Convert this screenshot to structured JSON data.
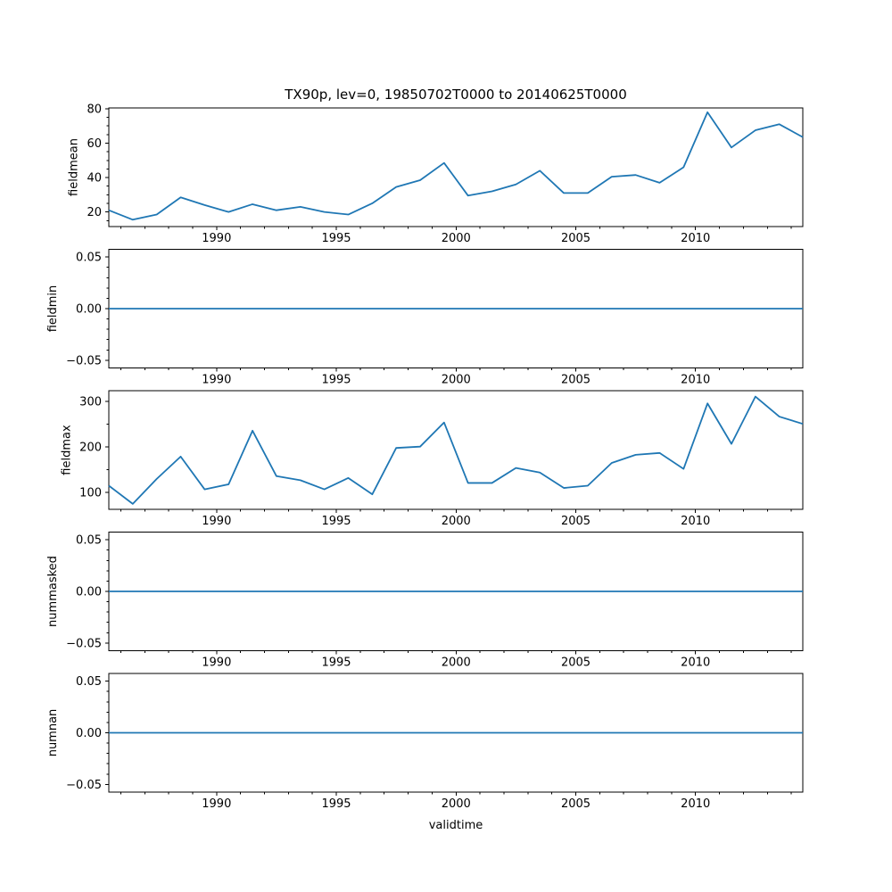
{
  "chart_data": {
    "type": "line",
    "title": "TX90p, lev=0, 19850702T0000 to 20140625T0000",
    "xlabel": "validtime",
    "line_color": "#1f77b4",
    "background_color": "#ffffff",
    "legend": "none",
    "grid": false,
    "x": [
      1985.5,
      1986.5,
      1987.5,
      1988.5,
      1989.5,
      1990.5,
      1991.5,
      1992.5,
      1993.5,
      1994.5,
      1995.5,
      1996.5,
      1997.5,
      1998.5,
      1999.5,
      2000.5,
      2001.5,
      2002.5,
      2003.5,
      2004.5,
      2005.5,
      2006.5,
      2007.5,
      2008.5,
      2009.5,
      2010.5,
      2011.5,
      2012.5,
      2013.5,
      2014.48
    ],
    "xlim": [
      1985.5,
      2014.48
    ],
    "xticks": [
      1990,
      1995,
      2000,
      2005,
      2010
    ],
    "xtick_labels": [
      "1990",
      "1995",
      "2000",
      "2005",
      "2010"
    ],
    "x_minor_range": [
      1986,
      2014
    ],
    "series": [
      {
        "name": "fieldmean",
        "ylabel": "fieldmean",
        "ylim": [
          11.5,
          80.5
        ],
        "yticks": [
          20,
          40,
          60,
          80
        ],
        "ytick_labels": [
          "20",
          "40",
          "60",
          "80"
        ],
        "y_minor_step": 5,
        "values": [
          21,
          15.5,
          18.5,
          28.5,
          24,
          20,
          24.5,
          21,
          23,
          20,
          18.5,
          25,
          34.5,
          38.5,
          48.5,
          29.5,
          32,
          36,
          44,
          31,
          31,
          40.5,
          41.5,
          37,
          46,
          78,
          57.5,
          67.5,
          71,
          63.5
        ]
      },
      {
        "name": "fieldmin",
        "ylabel": "fieldmin",
        "ylim": [
          -0.0575,
          0.0575
        ],
        "yticks": [
          -0.05,
          0,
          0.05
        ],
        "ytick_labels": [
          "−0.05",
          "0.00",
          "0.05"
        ],
        "y_minor_step": 0.01,
        "values": [
          0,
          0,
          0,
          0,
          0,
          0,
          0,
          0,
          0,
          0,
          0,
          0,
          0,
          0,
          0,
          0,
          0,
          0,
          0,
          0,
          0,
          0,
          0,
          0,
          0,
          0,
          0,
          0,
          0,
          0
        ]
      },
      {
        "name": "fieldmax",
        "ylabel": "fieldmax",
        "ylim": [
          63,
          324
        ],
        "yticks": [
          100,
          200,
          300
        ],
        "ytick_labels": [
          "100",
          "200",
          "300"
        ],
        "y_minor_step": 50,
        "values": [
          115,
          75,
          130,
          179,
          107,
          118,
          236,
          136,
          127,
          107,
          132,
          96,
          198,
          201,
          254,
          121,
          121,
          154,
          144,
          110,
          115,
          165,
          183,
          187,
          152,
          296,
          207,
          311,
          267,
          251
        ]
      },
      {
        "name": "nummasked",
        "ylabel": "nummasked",
        "ylim": [
          -0.0575,
          0.0575
        ],
        "yticks": [
          -0.05,
          0,
          0.05
        ],
        "ytick_labels": [
          "−0.05",
          "0.00",
          "0.05"
        ],
        "y_minor_step": 0.01,
        "values": [
          0,
          0,
          0,
          0,
          0,
          0,
          0,
          0,
          0,
          0,
          0,
          0,
          0,
          0,
          0,
          0,
          0,
          0,
          0,
          0,
          0,
          0,
          0,
          0,
          0,
          0,
          0,
          0,
          0,
          0
        ]
      },
      {
        "name": "numnan",
        "ylabel": "numnan",
        "ylim": [
          -0.0575,
          0.0575
        ],
        "yticks": [
          -0.05,
          0,
          0.05
        ],
        "ytick_labels": [
          "−0.05",
          "0.00",
          "0.05"
        ],
        "y_minor_step": 0.01,
        "values": [
          0,
          0,
          0,
          0,
          0,
          0,
          0,
          0,
          0,
          0,
          0,
          0,
          0,
          0,
          0,
          0,
          0,
          0,
          0,
          0,
          0,
          0,
          0,
          0,
          0,
          0,
          0,
          0,
          0,
          0
        ]
      }
    ]
  }
}
